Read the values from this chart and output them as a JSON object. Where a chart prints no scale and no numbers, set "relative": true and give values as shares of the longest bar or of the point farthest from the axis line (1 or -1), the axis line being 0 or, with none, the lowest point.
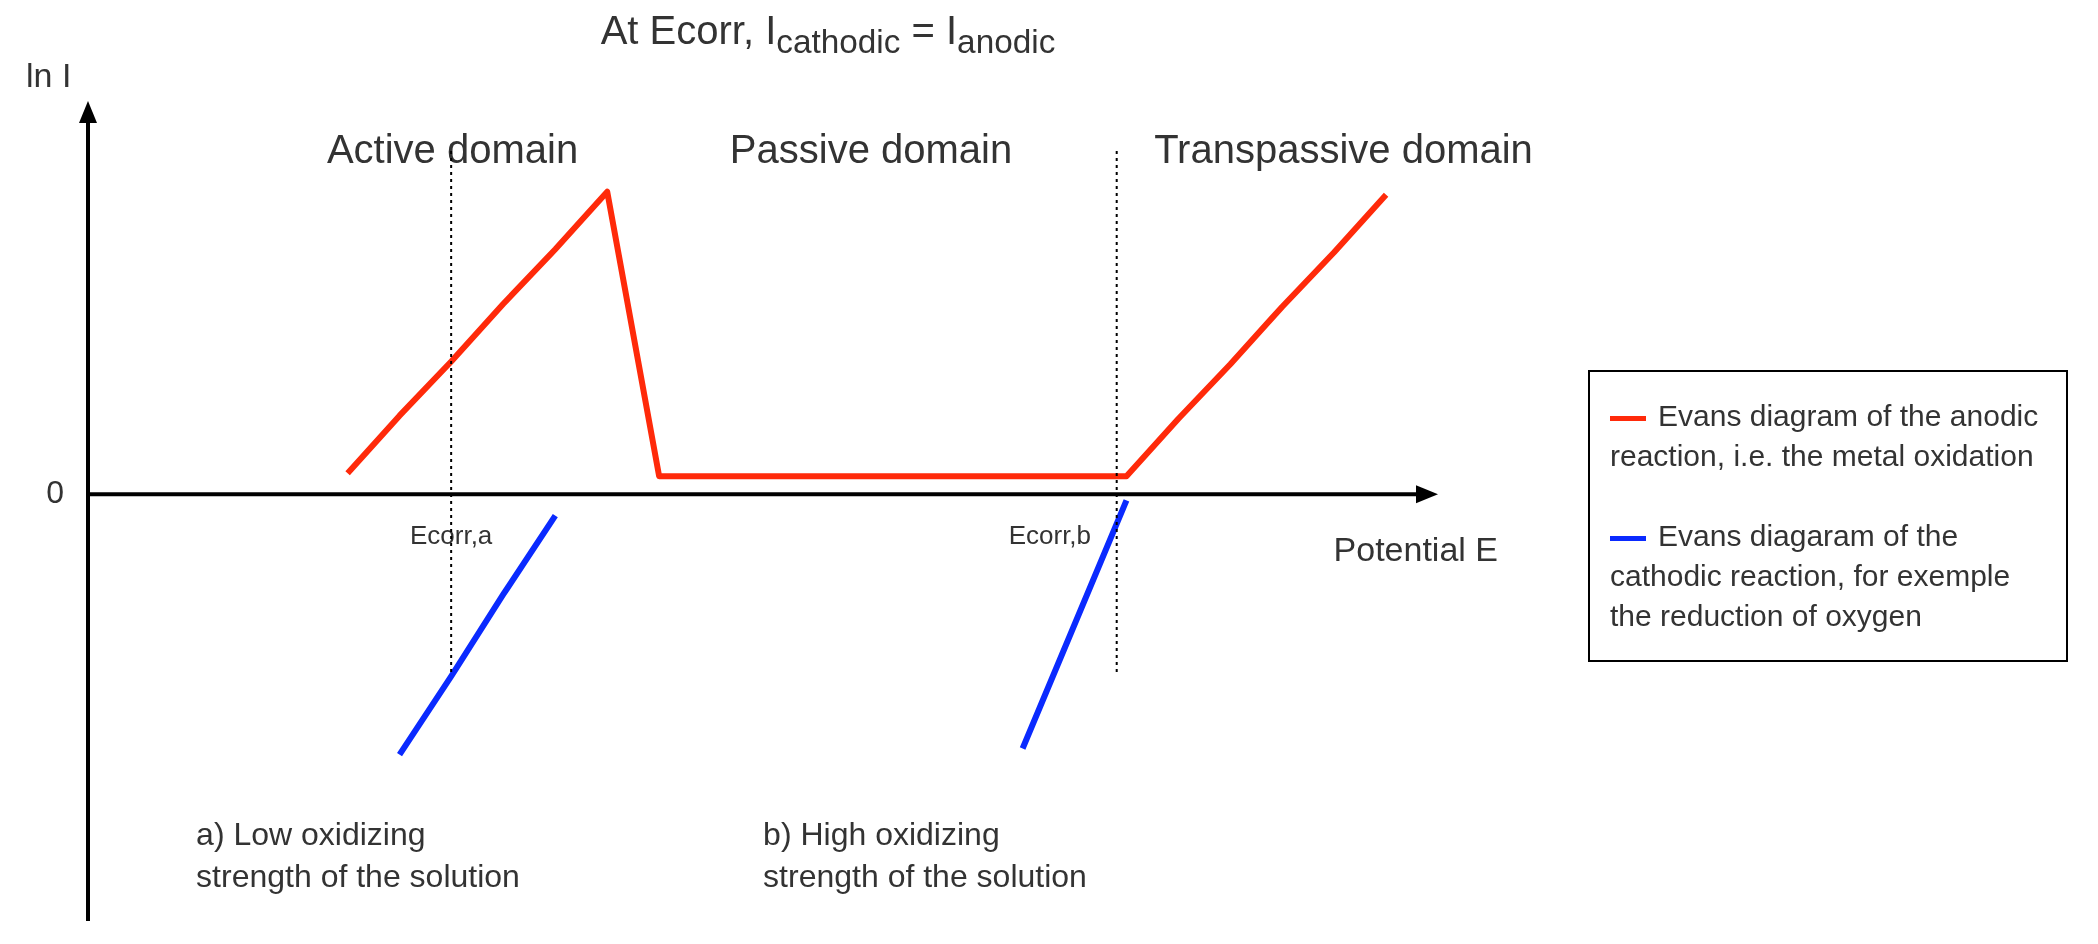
{
  "chart_data": {
    "type": "line",
    "title": "At Ecorr, I$_{cathodic}$ = I$_{anodic}$",
    "xlabel": "Potential E",
    "ylabel": "ln I",
    "relative": true,
    "legend": "right",
    "line_style": "solid",
    "marker": "none",
    "categories": [
      null,
      null,
      null,
      null,
      null,
      null,
      null,
      null,
      null,
      null,
      null,
      null,
      null,
      null,
      null,
      null,
      null,
      null,
      null,
      null,
      null,
      null,
      null,
      null,
      null,
      null,
      null
    ],
    "series": [
      {
        "name": "Evans diagram of the anodic reaction, i.e. the metal oxidation",
        "color": "#ff2a0a",
        "values": [
          null,
          null,
          null,
          null,
          null,
          0.07,
          0.26,
          0.44,
          0.63,
          0.81,
          1,
          0.06,
          0.06,
          0.06,
          0.06,
          0.06,
          0.06,
          0.06,
          0.06,
          0.06,
          0.06,
          0.25,
          0.43,
          0.62,
          0.8,
          0.99,
          null
        ]
      },
      {
        "name": "Evans diagaram of the cathodic reaction, for exemple the reduction of oxygen",
        "color": "#0a2aff",
        "values": [
          null,
          null,
          null,
          null,
          null,
          null,
          -0.86,
          -0.6,
          -0.33,
          -0.07,
          null,
          null,
          null,
          null,
          null,
          null,
          null,
          null,
          null,
          null,
          null,
          null,
          null,
          null,
          null,
          null,
          null
        ]
      },
      {
        "color": "#0a2aff",
        "values": [
          null,
          null,
          null,
          null,
          null,
          null,
          null,
          null,
          null,
          null,
          null,
          null,
          null,
          null,
          null,
          null,
          null,
          null,
          -0.84,
          -0.43,
          -0.02,
          null,
          null,
          null,
          null,
          null,
          null
        ]
      }
    ],
    "annotations": [
      "0",
      "Active domain",
      "Passive domain",
      "Transpassive domain",
      "a) Low oxidizing strength of the solution",
      "b) High oxidizing strength of the solution",
      "Ecorr,a",
      "Ecorr,b"
    ]
  }
}
